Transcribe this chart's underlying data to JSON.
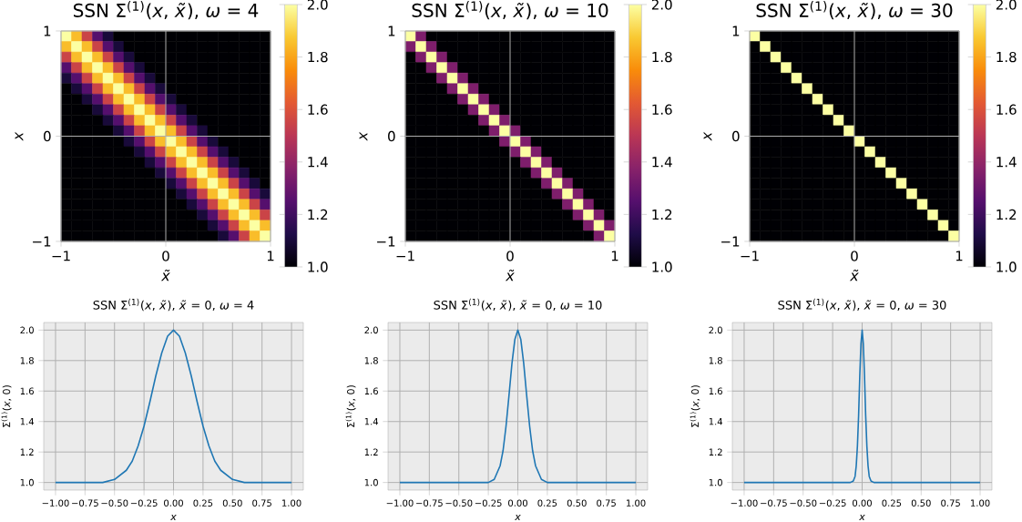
{
  "chart_data": [
    {
      "type": "heatmap",
      "title": "SSN Σ$^{(1)}$(*x*, *x̃*), *ω* = 4",
      "xlabel": "x̃",
      "ylabel": "x",
      "xlim": [
        -1,
        1
      ],
      "ylim": [
        -1,
        1
      ],
      "xticks": [
        {
          "value": -1,
          "label": "−1"
        },
        0,
        1
      ],
      "yticks": [
        {
          "value": -1,
          "label": "−1"
        },
        0,
        1
      ],
      "grid": true,
      "clim": [
        1,
        2
      ],
      "cticks": [
        {
          "value": 1,
          "label": "1.0"
        },
        {
          "value": 1.2,
          "label": "1.2"
        },
        {
          "value": 1.4,
          "label": "1.4"
        },
        {
          "value": 1.6,
          "label": "1.6"
        },
        {
          "value": 1.8,
          "label": "1.8"
        },
        {
          "value": 2,
          "label": "2.0"
        }
      ],
      "cells": [
        [
          2,
          1.85,
          1.55,
          1.25,
          1.1,
          1,
          1,
          1,
          1,
          1,
          1,
          1,
          1,
          1,
          1,
          1,
          1,
          1,
          1,
          1
        ],
        [
          1.85,
          2,
          1.85,
          1.55,
          1.25,
          1.1,
          1,
          1,
          1,
          1,
          1,
          1,
          1,
          1,
          1,
          1,
          1,
          1,
          1,
          1
        ],
        [
          1.55,
          1.85,
          2,
          1.85,
          1.55,
          1.25,
          1.1,
          1,
          1,
          1,
          1,
          1,
          1,
          1,
          1,
          1,
          1,
          1,
          1,
          1
        ],
        [
          1.25,
          1.55,
          1.85,
          2,
          1.85,
          1.55,
          1.25,
          1.1,
          1,
          1,
          1,
          1,
          1,
          1,
          1,
          1,
          1,
          1,
          1,
          1
        ],
        [
          1.1,
          1.25,
          1.55,
          1.85,
          2,
          1.85,
          1.55,
          1.25,
          1.1,
          1,
          1,
          1,
          1,
          1,
          1,
          1,
          1,
          1,
          1,
          1
        ],
        [
          1,
          1.1,
          1.25,
          1.55,
          1.85,
          2,
          1.85,
          1.55,
          1.25,
          1.1,
          1,
          1,
          1,
          1,
          1,
          1,
          1,
          1,
          1,
          1
        ],
        [
          1,
          1,
          1.1,
          1.25,
          1.55,
          1.85,
          2,
          1.85,
          1.55,
          1.25,
          1.1,
          1,
          1,
          1,
          1,
          1,
          1,
          1,
          1,
          1
        ],
        [
          1,
          1,
          1,
          1.1,
          1.25,
          1.55,
          1.85,
          2,
          1.85,
          1.55,
          1.25,
          1.1,
          1,
          1,
          1,
          1,
          1,
          1,
          1,
          1
        ],
        [
          1,
          1,
          1,
          1,
          1.1,
          1.25,
          1.55,
          1.85,
          2,
          1.85,
          1.55,
          1.25,
          1.1,
          1,
          1,
          1,
          1,
          1,
          1,
          1
        ],
        [
          1,
          1,
          1,
          1,
          1,
          1.1,
          1.25,
          1.55,
          1.85,
          2,
          1.85,
          1.55,
          1.25,
          1.1,
          1,
          1,
          1,
          1,
          1,
          1
        ],
        [
          1,
          1,
          1,
          1,
          1,
          1,
          1.1,
          1.25,
          1.55,
          1.85,
          2,
          1.85,
          1.55,
          1.25,
          1.1,
          1,
          1,
          1,
          1,
          1
        ],
        [
          1,
          1,
          1,
          1,
          1,
          1,
          1,
          1.1,
          1.25,
          1.55,
          1.85,
          2,
          1.85,
          1.55,
          1.25,
          1.1,
          1,
          1,
          1,
          1
        ],
        [
          1,
          1,
          1,
          1,
          1,
          1,
          1,
          1,
          1.1,
          1.25,
          1.55,
          1.85,
          2,
          1.85,
          1.55,
          1.25,
          1.1,
          1,
          1,
          1
        ],
        [
          1,
          1,
          1,
          1,
          1,
          1,
          1,
          1,
          1,
          1.1,
          1.25,
          1.55,
          1.85,
          2,
          1.85,
          1.55,
          1.25,
          1.1,
          1,
          1
        ],
        [
          1,
          1,
          1,
          1,
          1,
          1,
          1,
          1,
          1,
          1,
          1.1,
          1.25,
          1.55,
          1.85,
          2,
          1.85,
          1.55,
          1.25,
          1.1,
          1
        ],
        [
          1,
          1,
          1,
          1,
          1,
          1,
          1,
          1,
          1,
          1,
          1,
          1.1,
          1.25,
          1.55,
          1.85,
          2,
          1.85,
          1.55,
          1.25,
          1.1
        ],
        [
          1,
          1,
          1,
          1,
          1,
          1,
          1,
          1,
          1,
          1,
          1,
          1,
          1.1,
          1.25,
          1.55,
          1.85,
          2,
          1.85,
          1.55,
          1.25
        ],
        [
          1,
          1,
          1,
          1,
          1,
          1,
          1,
          1,
          1,
          1,
          1,
          1,
          1,
          1.1,
          1.25,
          1.55,
          1.85,
          2,
          1.85,
          1.55
        ],
        [
          1,
          1,
          1,
          1,
          1,
          1,
          1,
          1,
          1,
          1,
          1,
          1,
          1,
          1,
          1.1,
          1.25,
          1.55,
          1.85,
          2,
          1.85
        ],
        [
          1,
          1,
          1,
          1,
          1,
          1,
          1,
          1,
          1,
          1,
          1,
          1,
          1,
          1,
          1,
          1.1,
          1.25,
          1.55,
          1.85,
          2
        ]
      ]
    },
    {
      "type": "heatmap",
      "title": "SSN Σ$^{(1)}$(*x*, *x̃*), *ω* = 10",
      "xlabel": "x̃",
      "ylabel": "x",
      "xlim": [
        -1,
        1
      ],
      "ylim": [
        -1,
        1
      ],
      "xticks": [
        {
          "value": -1,
          "label": "−1"
        },
        0,
        1
      ],
      "yticks": [
        {
          "value": -1,
          "label": "−1"
        },
        0,
        1
      ],
      "grid": true,
      "clim": [
        1,
        2
      ],
      "cticks": [
        {
          "value": 1,
          "label": "1.0"
        },
        {
          "value": 1.2,
          "label": "1.2"
        },
        {
          "value": 1.4,
          "label": "1.4"
        },
        {
          "value": 1.6,
          "label": "1.6"
        },
        {
          "value": 1.8,
          "label": "1.8"
        },
        {
          "value": 2,
          "label": "2.0"
        }
      ],
      "cells": [
        [
          2,
          1.35,
          1,
          1,
          1,
          1,
          1,
          1,
          1,
          1,
          1,
          1,
          1,
          1,
          1,
          1,
          1,
          1,
          1,
          1
        ],
        [
          1.35,
          2,
          1.35,
          1,
          1,
          1,
          1,
          1,
          1,
          1,
          1,
          1,
          1,
          1,
          1,
          1,
          1,
          1,
          1,
          1
        ],
        [
          1,
          1.35,
          2,
          1.35,
          1,
          1,
          1,
          1,
          1,
          1,
          1,
          1,
          1,
          1,
          1,
          1,
          1,
          1,
          1,
          1
        ],
        [
          1,
          1,
          1.35,
          2,
          1.35,
          1,
          1,
          1,
          1,
          1,
          1,
          1,
          1,
          1,
          1,
          1,
          1,
          1,
          1,
          1
        ],
        [
          1,
          1,
          1,
          1.35,
          2,
          1.35,
          1,
          1,
          1,
          1,
          1,
          1,
          1,
          1,
          1,
          1,
          1,
          1,
          1,
          1
        ],
        [
          1,
          1,
          1,
          1,
          1.35,
          2,
          1.35,
          1,
          1,
          1,
          1,
          1,
          1,
          1,
          1,
          1,
          1,
          1,
          1,
          1
        ],
        [
          1,
          1,
          1,
          1,
          1,
          1.35,
          2,
          1.35,
          1,
          1,
          1,
          1,
          1,
          1,
          1,
          1,
          1,
          1,
          1,
          1
        ],
        [
          1,
          1,
          1,
          1,
          1,
          1,
          1.35,
          2,
          1.35,
          1,
          1,
          1,
          1,
          1,
          1,
          1,
          1,
          1,
          1,
          1
        ],
        [
          1,
          1,
          1,
          1,
          1,
          1,
          1,
          1.35,
          2,
          1.35,
          1,
          1,
          1,
          1,
          1,
          1,
          1,
          1,
          1,
          1
        ],
        [
          1,
          1,
          1,
          1,
          1,
          1,
          1,
          1,
          1.35,
          2,
          1.35,
          1,
          1,
          1,
          1,
          1,
          1,
          1,
          1,
          1
        ],
        [
          1,
          1,
          1,
          1,
          1,
          1,
          1,
          1,
          1,
          1.35,
          2,
          1.35,
          1,
          1,
          1,
          1,
          1,
          1,
          1,
          1
        ],
        [
          1,
          1,
          1,
          1,
          1,
          1,
          1,
          1,
          1,
          1,
          1.35,
          2,
          1.35,
          1,
          1,
          1,
          1,
          1,
          1,
          1
        ],
        [
          1,
          1,
          1,
          1,
          1,
          1,
          1,
          1,
          1,
          1,
          1,
          1.35,
          2,
          1.35,
          1,
          1,
          1,
          1,
          1,
          1
        ],
        [
          1,
          1,
          1,
          1,
          1,
          1,
          1,
          1,
          1,
          1,
          1,
          1,
          1.35,
          2,
          1.35,
          1,
          1,
          1,
          1,
          1
        ],
        [
          1,
          1,
          1,
          1,
          1,
          1,
          1,
          1,
          1,
          1,
          1,
          1,
          1,
          1.35,
          2,
          1.35,
          1,
          1,
          1,
          1
        ],
        [
          1,
          1,
          1,
          1,
          1,
          1,
          1,
          1,
          1,
          1,
          1,
          1,
          1,
          1,
          1.35,
          2,
          1.35,
          1,
          1,
          1
        ],
        [
          1,
          1,
          1,
          1,
          1,
          1,
          1,
          1,
          1,
          1,
          1,
          1,
          1,
          1,
          1,
          1.35,
          2,
          1.35,
          1,
          1
        ],
        [
          1,
          1,
          1,
          1,
          1,
          1,
          1,
          1,
          1,
          1,
          1,
          1,
          1,
          1,
          1,
          1,
          1.35,
          2,
          1.35,
          1
        ],
        [
          1,
          1,
          1,
          1,
          1,
          1,
          1,
          1,
          1,
          1,
          1,
          1,
          1,
          1,
          1,
          1,
          1,
          1.35,
          2,
          1.35
        ],
        [
          1,
          1,
          1,
          1,
          1,
          1,
          1,
          1,
          1,
          1,
          1,
          1,
          1,
          1,
          1,
          1,
          1,
          1,
          1.35,
          2
        ]
      ]
    },
    {
      "type": "heatmap",
      "title": "SSN Σ$^{(1)}$(*x*, *x̃*), *ω* = 30",
      "xlabel": "x̃",
      "ylabel": "x",
      "xlim": [
        -1,
        1
      ],
      "ylim": [
        -1,
        1
      ],
      "xticks": [
        {
          "value": -1,
          "label": "−1"
        },
        0,
        1
      ],
      "yticks": [
        {
          "value": -1,
          "label": "−1"
        },
        0,
        1
      ],
      "grid": true,
      "clim": [
        1,
        2
      ],
      "cticks": [
        {
          "value": 1,
          "label": "1.0"
        },
        {
          "value": 1.2,
          "label": "1.2"
        },
        {
          "value": 1.4,
          "label": "1.4"
        },
        {
          "value": 1.6,
          "label": "1.6"
        },
        {
          "value": 1.8,
          "label": "1.8"
        },
        {
          "value": 2,
          "label": "2.0"
        }
      ],
      "cells": [
        [
          2,
          1,
          1,
          1,
          1,
          1,
          1,
          1,
          1,
          1,
          1,
          1,
          1,
          1,
          1,
          1,
          1,
          1,
          1,
          1
        ],
        [
          1,
          2,
          1,
          1,
          1,
          1,
          1,
          1,
          1,
          1,
          1,
          1,
          1,
          1,
          1,
          1,
          1,
          1,
          1,
          1
        ],
        [
          1,
          1,
          2,
          1,
          1,
          1,
          1,
          1,
          1,
          1,
          1,
          1,
          1,
          1,
          1,
          1,
          1,
          1,
          1,
          1
        ],
        [
          1,
          1,
          1,
          2,
          1,
          1,
          1,
          1,
          1,
          1,
          1,
          1,
          1,
          1,
          1,
          1,
          1,
          1,
          1,
          1
        ],
        [
          1,
          1,
          1,
          1,
          2,
          1,
          1,
          1,
          1,
          1,
          1,
          1,
          1,
          1,
          1,
          1,
          1,
          1,
          1,
          1
        ],
        [
          1,
          1,
          1,
          1,
          1,
          2,
          1,
          1,
          1,
          1,
          1,
          1,
          1,
          1,
          1,
          1,
          1,
          1,
          1,
          1
        ],
        [
          1,
          1,
          1,
          1,
          1,
          1,
          2,
          1,
          1,
          1,
          1,
          1,
          1,
          1,
          1,
          1,
          1,
          1,
          1,
          1
        ],
        [
          1,
          1,
          1,
          1,
          1,
          1,
          1,
          2,
          1,
          1,
          1,
          1,
          1,
          1,
          1,
          1,
          1,
          1,
          1,
          1
        ],
        [
          1,
          1,
          1,
          1,
          1,
          1,
          1,
          1,
          2,
          1,
          1,
          1,
          1,
          1,
          1,
          1,
          1,
          1,
          1,
          1
        ],
        [
          1,
          1,
          1,
          1,
          1,
          1,
          1,
          1,
          1,
          2,
          1,
          1,
          1,
          1,
          1,
          1,
          1,
          1,
          1,
          1
        ],
        [
          1,
          1,
          1,
          1,
          1,
          1,
          1,
          1,
          1,
          1,
          2,
          1,
          1,
          1,
          1,
          1,
          1,
          1,
          1,
          1
        ],
        [
          1,
          1,
          1,
          1,
          1,
          1,
          1,
          1,
          1,
          1,
          1,
          2,
          1,
          1,
          1,
          1,
          1,
          1,
          1,
          1
        ],
        [
          1,
          1,
          1,
          1,
          1,
          1,
          1,
          1,
          1,
          1,
          1,
          1,
          2,
          1,
          1,
          1,
          1,
          1,
          1,
          1
        ],
        [
          1,
          1,
          1,
          1,
          1,
          1,
          1,
          1,
          1,
          1,
          1,
          1,
          1,
          2,
          1,
          1,
          1,
          1,
          1,
          1
        ],
        [
          1,
          1,
          1,
          1,
          1,
          1,
          1,
          1,
          1,
          1,
          1,
          1,
          1,
          1,
          2,
          1,
          1,
          1,
          1,
          1
        ],
        [
          1,
          1,
          1,
          1,
          1,
          1,
          1,
          1,
          1,
          1,
          1,
          1,
          1,
          1,
          1,
          2,
          1,
          1,
          1,
          1
        ],
        [
          1,
          1,
          1,
          1,
          1,
          1,
          1,
          1,
          1,
          1,
          1,
          1,
          1,
          1,
          1,
          1,
          2,
          1,
          1,
          1
        ],
        [
          1,
          1,
          1,
          1,
          1,
          1,
          1,
          1,
          1,
          1,
          1,
          1,
          1,
          1,
          1,
          1,
          1,
          2,
          1,
          1
        ],
        [
          1,
          1,
          1,
          1,
          1,
          1,
          1,
          1,
          1,
          1,
          1,
          1,
          1,
          1,
          1,
          1,
          1,
          1,
          2,
          1
        ],
        [
          1,
          1,
          1,
          1,
          1,
          1,
          1,
          1,
          1,
          1,
          1,
          1,
          1,
          1,
          1,
          1,
          1,
          1,
          1,
          2
        ]
      ]
    },
    {
      "type": "line",
      "title": "SSN Σ$^{(1)}$(*x*, *x̃*), *x̃* = 0, *ω* = 4",
      "xlabel": "x",
      "ylabel": "Σ$^{(1)}$(*x*, 0)",
      "xlim": [
        -1.1,
        1.1
      ],
      "ylim": [
        0.95,
        2.05
      ],
      "xticks": [
        {
          "value": -1,
          "label": "−1.00"
        },
        {
          "value": -0.75,
          "label": "−0.75"
        },
        {
          "value": -0.5,
          "label": "−0.50"
        },
        {
          "value": -0.25,
          "label": "−0.25"
        },
        {
          "value": 0,
          "label": "0.00"
        },
        {
          "value": 0.25,
          "label": "0.25"
        },
        {
          "value": 0.5,
          "label": "0.50"
        },
        {
          "value": 0.75,
          "label": "0.75"
        },
        {
          "value": 1,
          "label": "1.00"
        }
      ],
      "yticks": [
        {
          "value": 1,
          "label": "1.0"
        },
        {
          "value": 1.2,
          "label": "1.2"
        },
        {
          "value": 1.4,
          "label": "1.4"
        },
        {
          "value": 1.6,
          "label": "1.6"
        },
        {
          "value": 1.8,
          "label": "1.8"
        },
        {
          "value": 2,
          "label": "2.0"
        }
      ],
      "grid": true,
      "x": [
        -1,
        -0.8,
        -0.6,
        -0.5,
        -0.4,
        -0.35,
        -0.3,
        -0.25,
        -0.2,
        -0.15,
        -0.1,
        -0.05,
        0,
        0.05,
        0.1,
        0.15,
        0.2,
        0.25,
        0.3,
        0.35,
        0.4,
        0.5,
        0.6,
        0.8,
        1
      ],
      "series": [
        {
          "color": "#1f77b4",
          "values": [
            1,
            1,
            1,
            1.02,
            1.08,
            1.14,
            1.24,
            1.37,
            1.53,
            1.7,
            1.85,
            1.96,
            2,
            1.96,
            1.85,
            1.7,
            1.53,
            1.37,
            1.24,
            1.14,
            1.08,
            1.02,
            1,
            1,
            1
          ]
        }
      ]
    },
    {
      "type": "line",
      "title": "SSN Σ$^{(1)}$(*x*, *x̃*), *x̃* = 0, *ω* = 10",
      "xlabel": "x",
      "ylabel": "Σ$^{(1)}$(*x*, 0)",
      "xlim": [
        -1.1,
        1.1
      ],
      "ylim": [
        0.95,
        2.05
      ],
      "xticks": [
        {
          "value": -1,
          "label": "−1.00"
        },
        {
          "value": -0.75,
          "label": "−0.75"
        },
        {
          "value": -0.5,
          "label": "−0.50"
        },
        {
          "value": -0.25,
          "label": "−0.25"
        },
        {
          "value": 0,
          "label": "0.00"
        },
        {
          "value": 0.25,
          "label": "0.25"
        },
        {
          "value": 0.5,
          "label": "0.50"
        },
        {
          "value": 0.75,
          "label": "0.75"
        },
        {
          "value": 1,
          "label": "1.00"
        }
      ],
      "yticks": [
        {
          "value": 1,
          "label": "1.0"
        },
        {
          "value": 1.2,
          "label": "1.2"
        },
        {
          "value": 1.4,
          "label": "1.4"
        },
        {
          "value": 1.6,
          "label": "1.6"
        },
        {
          "value": 1.8,
          "label": "1.8"
        },
        {
          "value": 2,
          "label": "2.0"
        }
      ],
      "grid": true,
      "x": [
        -1,
        -0.6,
        -0.3,
        -0.25,
        -0.2,
        -0.15,
        -0.125,
        -0.1,
        -0.075,
        -0.05,
        -0.025,
        0,
        0.025,
        0.05,
        0.075,
        0.1,
        0.125,
        0.15,
        0.2,
        0.25,
        0.3,
        0.6,
        1
      ],
      "series": [
        {
          "color": "#1f77b4",
          "values": [
            1,
            1,
            1,
            1,
            1.02,
            1.11,
            1.21,
            1.37,
            1.57,
            1.78,
            1.94,
            2,
            1.94,
            1.78,
            1.57,
            1.37,
            1.21,
            1.11,
            1.02,
            1,
            1,
            1,
            1
          ]
        }
      ]
    },
    {
      "type": "line",
      "title": "SSN Σ$^{(1)}$(*x*, *x̃*), *x̃* = 0, *ω* = 30",
      "xlabel": "x",
      "ylabel": "Σ$^{(1)}$(*x*, 0)",
      "xlim": [
        -1.1,
        1.1
      ],
      "ylim": [
        0.95,
        2.05
      ],
      "xticks": [
        {
          "value": -1,
          "label": "−1.00"
        },
        {
          "value": -0.75,
          "label": "−0.75"
        },
        {
          "value": -0.5,
          "label": "−0.50"
        },
        {
          "value": -0.25,
          "label": "−0.25"
        },
        {
          "value": 0,
          "label": "0.00"
        },
        {
          "value": 0.25,
          "label": "0.25"
        },
        {
          "value": 0.5,
          "label": "0.50"
        },
        {
          "value": 0.75,
          "label": "0.75"
        },
        {
          "value": 1,
          "label": "1.00"
        }
      ],
      "yticks": [
        {
          "value": 1,
          "label": "1.0"
        },
        {
          "value": 1.2,
          "label": "1.2"
        },
        {
          "value": 1.4,
          "label": "1.4"
        },
        {
          "value": 1.6,
          "label": "1.6"
        },
        {
          "value": 1.8,
          "label": "1.8"
        },
        {
          "value": 2,
          "label": "2.0"
        }
      ],
      "grid": true,
      "x": [
        -1,
        -0.5,
        -0.1,
        -0.075,
        -0.06,
        -0.05,
        -0.04,
        -0.03,
        -0.02,
        -0.01,
        0,
        0.01,
        0.02,
        0.03,
        0.04,
        0.05,
        0.06,
        0.075,
        0.1,
        0.5,
        1
      ],
      "series": [
        {
          "color": "#1f77b4",
          "values": [
            1,
            1,
            1,
            1.01,
            1.04,
            1.11,
            1.24,
            1.44,
            1.7,
            1.91,
            2,
            1.91,
            1.7,
            1.44,
            1.24,
            1.11,
            1.04,
            1.01,
            1,
            1,
            1
          ]
        }
      ]
    }
  ]
}
